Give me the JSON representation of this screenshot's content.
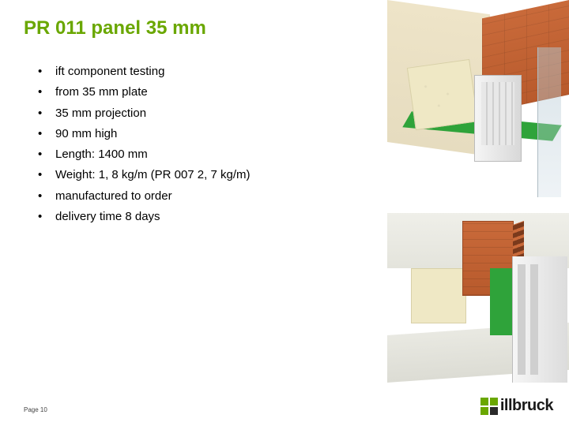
{
  "title": {
    "text": "PR 011 panel 35 mm",
    "color": "#6aa700",
    "fontsize": 24,
    "fontweight": "bold"
  },
  "bullets": {
    "items": [
      "ift component testing",
      "from 35 mm plate",
      "35 mm projection",
      "90 mm high",
      "Length: 1400 mm",
      "Weight: 1, 8 kg/m (PR 007 2, 7 kg/m)",
      "manufactured to order",
      "delivery time 8 days"
    ],
    "fontsize": 15,
    "color": "#000000"
  },
  "footer": {
    "page_label": "Page 10"
  },
  "logo": {
    "text": "illbruck",
    "brand_green": "#6aa700",
    "brand_dark": "#2a2a2a"
  },
  "renders": {
    "top": {
      "type": "3d-cutaway",
      "description": "isometric window-sill installation detail, brick wall corner, foam block, green sealing tape, white PVC profile",
      "palette": {
        "brick": "#c96a3a",
        "wall": "#eee4c8",
        "foam": "#efe8c5",
        "tape": "#2fa33a",
        "profile": "#e8e8e8",
        "glass": "#c4d2da"
      }
    },
    "bottom": {
      "type": "3d-cutaway",
      "description": "vertical window-jamb detail, perforated brick, foam block, green tape strip, white frame",
      "palette": {
        "brick": "#c96a3a",
        "wall": "#efefe9",
        "foam": "#efe8c5",
        "tape": "#2fa33a",
        "frame": "#e8e8e8"
      }
    }
  }
}
